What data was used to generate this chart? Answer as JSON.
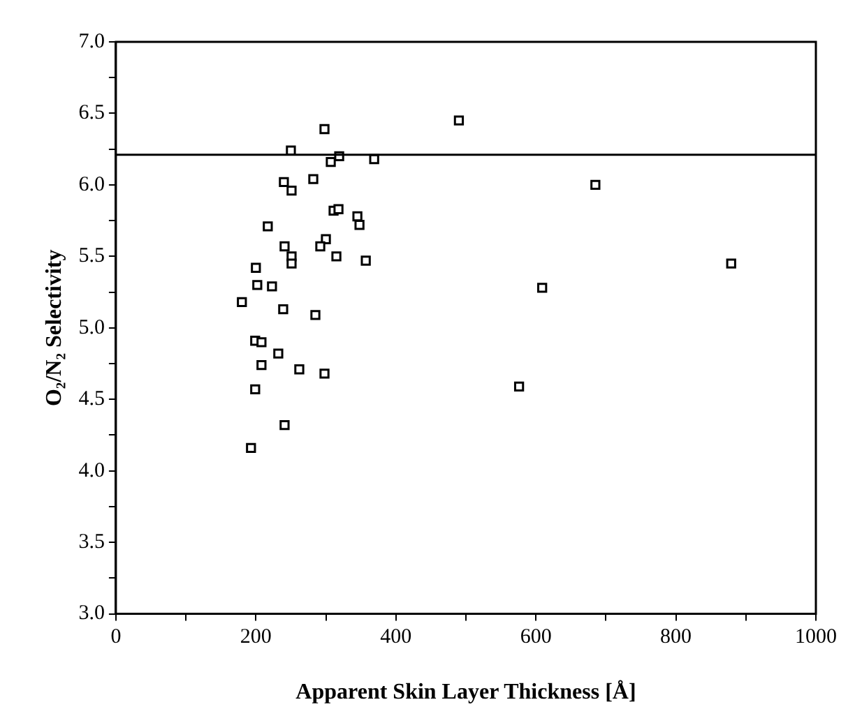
{
  "chart_data": {
    "type": "scatter",
    "xlabel": "Apparent Skin Layer Thickness [Å]",
    "ylabel": "O₂/N₂ Selectivity",
    "x": [
      298,
      490,
      250,
      307,
      319,
      369,
      282,
      240,
      251,
      685,
      311,
      318,
      345,
      348,
      217,
      300,
      292,
      241,
      251,
      251,
      315,
      357,
      879,
      200,
      202,
      223,
      609,
      180,
      239,
      285,
      199,
      208,
      232,
      208,
      262,
      298,
      576,
      199,
      241,
      193
    ],
    "series": [
      {
        "color": "#000000",
        "values": [
          6.39,
          6.45,
          6.24,
          6.16,
          6.2,
          6.18,
          6.04,
          6.02,
          5.96,
          6.0,
          5.82,
          5.83,
          5.78,
          5.72,
          5.71,
          5.62,
          5.57,
          5.57,
          5.5,
          5.45,
          5.5,
          5.47,
          5.45,
          5.42,
          5.3,
          5.29,
          5.28,
          5.18,
          5.13,
          5.09,
          4.91,
          4.9,
          4.82,
          4.74,
          4.71,
          4.68,
          4.59,
          4.57,
          4.32,
          4.16
        ]
      }
    ],
    "xlim": [
      0,
      1000
    ],
    "ylim": [
      3.0,
      7.0
    ],
    "xticks": [
      0,
      {
        "value": 100,
        "label": null
      },
      200,
      {
        "value": 300,
        "label": null
      },
      400,
      {
        "value": 500,
        "label": null
      },
      600,
      {
        "value": 700,
        "label": null
      },
      800,
      {
        "value": 900,
        "label": null
      },
      1000
    ],
    "yticks": [
      {
        "value": 3,
        "label": "3.0"
      },
      {
        "value": 3.25,
        "label": null
      },
      {
        "value": 3.5,
        "label": "3.5"
      },
      {
        "value": 3.75,
        "label": null
      },
      {
        "value": 4,
        "label": "4.0"
      },
      {
        "value": 4.25,
        "label": null
      },
      {
        "value": 4.5,
        "label": "4.5"
      },
      {
        "value": 4.75,
        "label": null
      },
      {
        "value": 5,
        "label": "5.0"
      },
      {
        "value": 5.25,
        "label": null
      },
      {
        "value": 5.5,
        "label": "5.5"
      },
      {
        "value": 5.75,
        "label": null
      },
      {
        "value": 6,
        "label": "6.0"
      },
      {
        "value": 6.25,
        "label": null
      },
      {
        "value": 6.5,
        "label": "6.5"
      },
      {
        "value": 6.75,
        "label": null
      },
      {
        "value": 7,
        "label": "7.0"
      }
    ],
    "ref_lines": [
      {
        "axis": "y",
        "value": 6.21,
        "color": "#000000"
      }
    ],
    "marker": "square",
    "legend": false
  }
}
